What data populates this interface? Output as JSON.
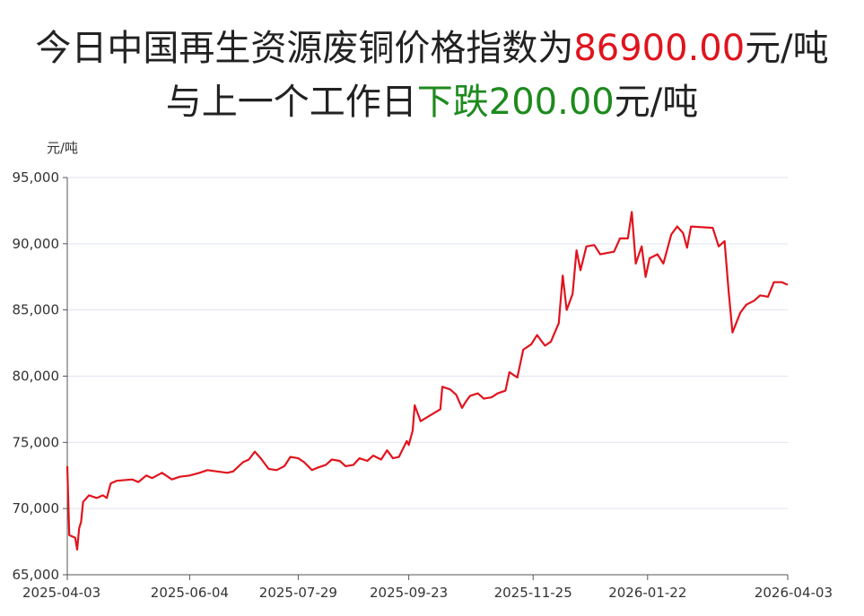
{
  "title": {
    "line1_prefix": "今日中国再生资源废铜价格指数为",
    "line1_value": "86900.00",
    "line1_suffix": "元/吨",
    "line2_prefix": "与上一个工作日",
    "line2_change": "下跌200.00",
    "line2_suffix": "元/吨"
  },
  "colors": {
    "up": "#e0141e",
    "down": "#1e8a1e",
    "line": "#e0141e",
    "grid": "#dfe3ef"
  },
  "chart_data": {
    "type": "line",
    "ylabel": "元/吨",
    "ylim": [
      65000,
      95000
    ],
    "yticks": [
      65000,
      70000,
      75000,
      80000,
      85000,
      90000,
      95000
    ],
    "ytick_labels": [
      "65,000",
      "70,000",
      "75,000",
      "80,000",
      "85,000",
      "90,000",
      "95,000"
    ],
    "xlim": [
      "2025-04-03",
      "2026-04-03"
    ],
    "xticks": [
      "2025-04-03",
      "2025-06-04",
      "2025-07-29",
      "2025-09-23",
      "2025-11-25",
      "2026-01-22",
      "2026-04-03"
    ],
    "grid": true,
    "series": [
      {
        "values": [
          [
            "2025-04-03",
            73200
          ],
          [
            "2025-04-04",
            68000
          ],
          [
            "2025-04-07",
            67800
          ],
          [
            "2025-04-08",
            66900
          ],
          [
            "2025-04-09",
            68500
          ],
          [
            "2025-04-10",
            69000
          ],
          [
            "2025-04-11",
            70500
          ],
          [
            "2025-04-14",
            71000
          ],
          [
            "2025-04-16",
            70900
          ],
          [
            "2025-04-18",
            70800
          ],
          [
            "2025-04-21",
            71000
          ],
          [
            "2025-04-23",
            70800
          ],
          [
            "2025-04-25",
            71900
          ],
          [
            "2025-04-28",
            72100
          ],
          [
            "2025-05-06",
            72200
          ],
          [
            "2025-05-09",
            72000
          ],
          [
            "2025-05-13",
            72500
          ],
          [
            "2025-05-16",
            72300
          ],
          [
            "2025-05-21",
            72700
          ],
          [
            "2025-05-26",
            72200
          ],
          [
            "2025-05-30",
            72400
          ],
          [
            "2025-06-04",
            72500
          ],
          [
            "2025-06-09",
            72700
          ],
          [
            "2025-06-13",
            72900
          ],
          [
            "2025-06-18",
            72800
          ],
          [
            "2025-06-23",
            72700
          ],
          [
            "2025-06-26",
            72800
          ],
          [
            "2025-07-01",
            73500
          ],
          [
            "2025-07-04",
            73700
          ],
          [
            "2025-07-07",
            74300
          ],
          [
            "2025-07-10",
            73800
          ],
          [
            "2025-07-14",
            73000
          ],
          [
            "2025-07-18",
            72900
          ],
          [
            "2025-07-22",
            73200
          ],
          [
            "2025-07-25",
            73900
          ],
          [
            "2025-07-29",
            73800
          ],
          [
            "2025-08-01",
            73500
          ],
          [
            "2025-08-05",
            72900
          ],
          [
            "2025-08-08",
            73100
          ],
          [
            "2025-08-12",
            73300
          ],
          [
            "2025-08-15",
            73700
          ],
          [
            "2025-08-19",
            73600
          ],
          [
            "2025-08-22",
            73200
          ],
          [
            "2025-08-26",
            73300
          ],
          [
            "2025-08-29",
            73800
          ],
          [
            "2025-09-02",
            73600
          ],
          [
            "2025-09-05",
            74000
          ],
          [
            "2025-09-09",
            73700
          ],
          [
            "2025-09-12",
            74400
          ],
          [
            "2025-09-15",
            73800
          ],
          [
            "2025-09-18",
            73900
          ],
          [
            "2025-09-22",
            75100
          ],
          [
            "2025-09-23",
            74800
          ],
          [
            "2025-09-25",
            75900
          ],
          [
            "2025-09-26",
            77800
          ],
          [
            "2025-09-29",
            76600
          ],
          [
            "2025-10-09",
            77500
          ],
          [
            "2025-10-10",
            79200
          ],
          [
            "2025-10-14",
            79000
          ],
          [
            "2025-10-17",
            78600
          ],
          [
            "2025-10-20",
            77600
          ],
          [
            "2025-10-22",
            78100
          ],
          [
            "2025-10-24",
            78500
          ],
          [
            "2025-10-28",
            78700
          ],
          [
            "2025-10-31",
            78300
          ],
          [
            "2025-11-04",
            78400
          ],
          [
            "2025-11-07",
            78700
          ],
          [
            "2025-11-11",
            78900
          ],
          [
            "2025-11-13",
            80300
          ],
          [
            "2025-11-17",
            79900
          ],
          [
            "2025-11-20",
            82000
          ],
          [
            "2025-11-24",
            82400
          ],
          [
            "2025-11-27",
            83100
          ],
          [
            "2025-12-01",
            82300
          ],
          [
            "2025-12-04",
            82600
          ],
          [
            "2025-12-08",
            84000
          ],
          [
            "2025-12-10",
            87600
          ],
          [
            "2025-12-12",
            85000
          ],
          [
            "2025-12-15",
            86200
          ],
          [
            "2025-12-17",
            89500
          ],
          [
            "2025-12-19",
            88000
          ],
          [
            "2025-12-22",
            89800
          ],
          [
            "2025-12-26",
            89900
          ],
          [
            "2025-12-29",
            89200
          ],
          [
            "2026-01-05",
            89400
          ],
          [
            "2026-01-08",
            90400
          ],
          [
            "2026-01-12",
            90400
          ],
          [
            "2026-01-14",
            92400
          ],
          [
            "2026-01-16",
            88500
          ],
          [
            "2026-01-19",
            89800
          ],
          [
            "2026-01-21",
            87500
          ],
          [
            "2026-01-23",
            88900
          ],
          [
            "2026-01-27",
            89200
          ],
          [
            "2026-01-30",
            88500
          ],
          [
            "2026-02-03",
            90700
          ],
          [
            "2026-02-06",
            91300
          ],
          [
            "2026-02-09",
            90800
          ],
          [
            "2026-02-11",
            89700
          ],
          [
            "2026-02-13",
            91300
          ],
          [
            "2026-02-24",
            91200
          ],
          [
            "2026-02-27",
            89800
          ],
          [
            "2026-03-02",
            90200
          ],
          [
            "2026-03-04",
            86500
          ],
          [
            "2026-03-06",
            83300
          ],
          [
            "2026-03-10",
            84800
          ],
          [
            "2026-03-13",
            85400
          ],
          [
            "2026-03-17",
            85700
          ],
          [
            "2026-03-20",
            86100
          ],
          [
            "2026-03-24",
            86000
          ],
          [
            "2026-03-27",
            87100
          ],
          [
            "2026-03-31",
            87100
          ],
          [
            "2026-04-03",
            86900
          ]
        ]
      }
    ]
  }
}
